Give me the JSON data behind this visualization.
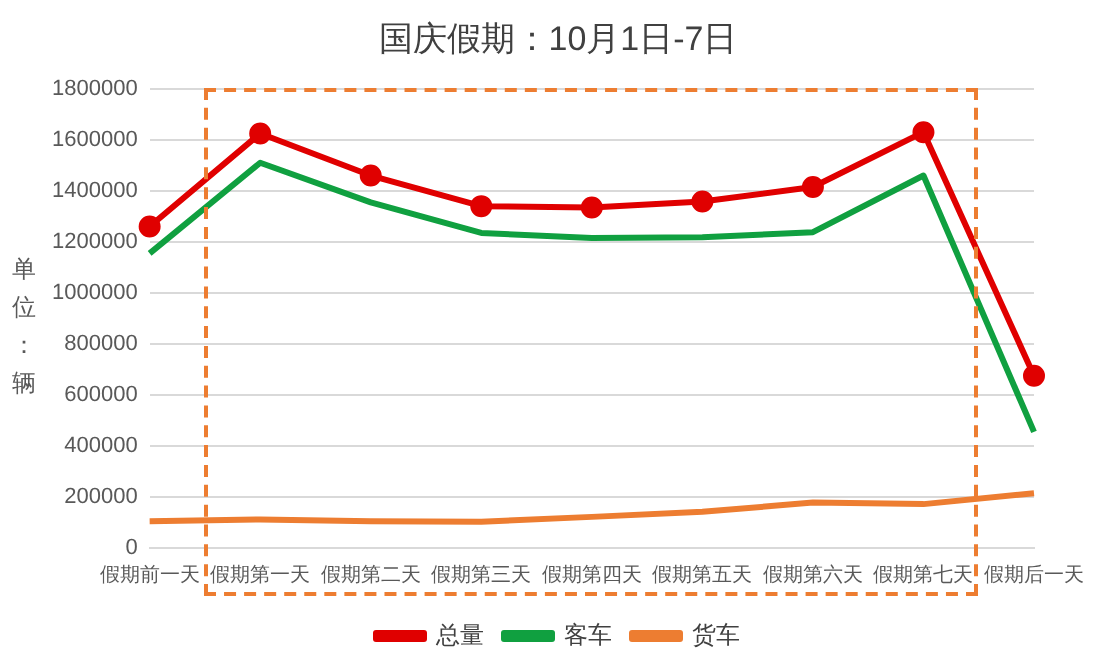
{
  "chart_data": {
    "type": "line",
    "title": "国庆假期：10月1日-7日",
    "ylabel": "单位：辆",
    "categories": [
      "假期前一天",
      "假期第一天",
      "假期第二天",
      "假期第三天",
      "假期第四天",
      "假期第五天",
      "假期第六天",
      "假期第七天",
      "假期后一天"
    ],
    "series": [
      {
        "name": "总量",
        "color": "#e00000",
        "marker": "circle",
        "values": [
          1260000,
          1625000,
          1460000,
          1340000,
          1335000,
          1358000,
          1415000,
          1630000,
          675000
        ]
      },
      {
        "name": "客车",
        "color": "#10a040",
        "marker": "none",
        "values": [
          1155000,
          1510000,
          1355000,
          1235000,
          1215000,
          1218000,
          1238000,
          1460000,
          455000
        ]
      },
      {
        "name": "货车",
        "color": "#ed7d31",
        "marker": "none",
        "values": [
          105000,
          112000,
          105000,
          103000,
          122000,
          142000,
          178000,
          172000,
          215000
        ]
      }
    ],
    "ylim": [
      0,
      1800000
    ],
    "yticks": [
      0,
      200000,
      400000,
      600000,
      800000,
      1000000,
      1200000,
      1400000,
      1600000,
      1800000
    ],
    "grid": "y",
    "legend": "bottom"
  }
}
